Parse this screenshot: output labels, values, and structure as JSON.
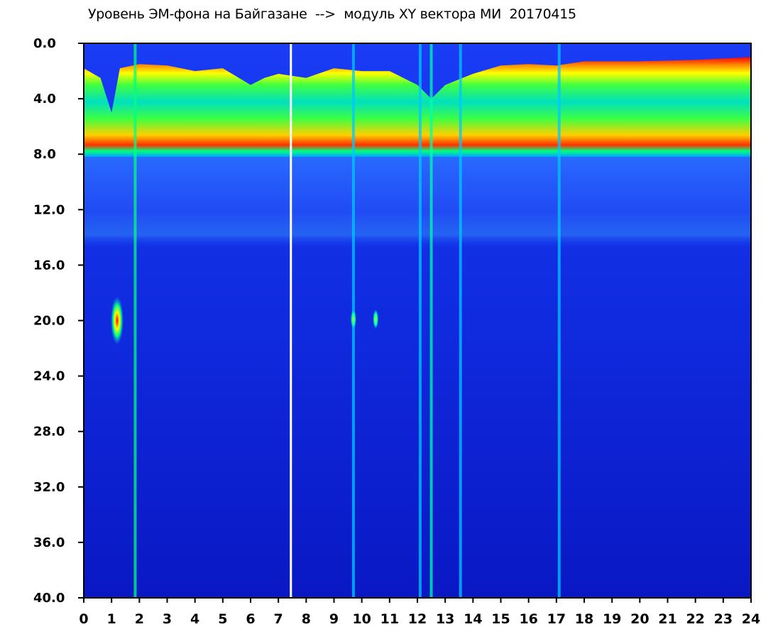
{
  "title": "Уровень ЭМ-фона на Байгазане  -->  модуль XY вектора МИ  20170415",
  "chart_data": {
    "type": "heatmap",
    "title": "Уровень ЭМ-фона на Байгазане  -->  модуль XY вектора МИ  20170415",
    "xlabel": "",
    "ylabel": "",
    "xlim": [
      0,
      24
    ],
    "ylim": [
      40.0,
      0.0
    ],
    "y_inverted": true,
    "x_tick_labels": [
      "0",
      "1",
      "2",
      "3",
      "4",
      "5",
      "6",
      "7",
      "8",
      "9",
      "10",
      "11",
      "12",
      "13",
      "14",
      "15",
      "16",
      "17",
      "18",
      "19",
      "20",
      "21",
      "22",
      "23",
      "24"
    ],
    "y_tick_labels": [
      "0.0",
      "4.0",
      "8.0",
      "12.0",
      "16.0",
      "20.0",
      "24.0",
      "28.0",
      "32.0",
      "36.0",
      "40.0"
    ],
    "colormap": [
      "#0a14c8",
      "#1e46ff",
      "#00c8ff",
      "#00ffaa",
      "#78ff00",
      "#ffff00",
      "#ff8c00",
      "#ff0000",
      "#ffffff"
    ],
    "grid": false,
    "legend": "none",
    "band_top_by_hour": [
      {
        "x": 0.0,
        "y": 1.8
      },
      {
        "x": 0.6,
        "y": 2.5
      },
      {
        "x": 1.0,
        "y": 5.0
      },
      {
        "x": 1.3,
        "y": 1.8
      },
      {
        "x": 2.0,
        "y": 1.5
      },
      {
        "x": 3.0,
        "y": 1.6
      },
      {
        "x": 4.0,
        "y": 2.0
      },
      {
        "x": 5.0,
        "y": 1.8
      },
      {
        "x": 6.0,
        "y": 3.0
      },
      {
        "x": 6.5,
        "y": 2.5
      },
      {
        "x": 7.0,
        "y": 2.2
      },
      {
        "x": 8.0,
        "y": 2.5
      },
      {
        "x": 9.0,
        "y": 1.8
      },
      {
        "x": 10.0,
        "y": 2.0
      },
      {
        "x": 11.0,
        "y": 2.0
      },
      {
        "x": 12.0,
        "y": 3.0
      },
      {
        "x": 12.5,
        "y": 4.0
      },
      {
        "x": 13.0,
        "y": 3.0
      },
      {
        "x": 14.0,
        "y": 2.2
      },
      {
        "x": 15.0,
        "y": 1.6
      },
      {
        "x": 16.0,
        "y": 1.5
      },
      {
        "x": 17.0,
        "y": 1.6
      },
      {
        "x": 18.0,
        "y": 1.3
      },
      {
        "x": 20.0,
        "y": 1.3
      },
      {
        "x": 22.0,
        "y": 1.2
      },
      {
        "x": 24.0,
        "y": 1.0
      }
    ],
    "band_bottom": 8.2,
    "weak_band_bottom": 14.8,
    "vertical_streaks": [
      {
        "x": 1.85,
        "color": "#00ff80"
      },
      {
        "x": 7.45,
        "color": "#ffffff"
      },
      {
        "x": 9.7,
        "color": "#00c8ff"
      },
      {
        "x": 12.1,
        "color": "#00c8ff"
      },
      {
        "x": 12.5,
        "color": "#00ffaa"
      },
      {
        "x": 13.55,
        "color": "#00c8ff"
      },
      {
        "x": 17.1,
        "color": "#00c8ff"
      }
    ],
    "hotspots": [
      {
        "x": 1.2,
        "y": 20.0,
        "intensity": "high"
      },
      {
        "x": 9.7,
        "y": 19.9,
        "intensity": "medium"
      },
      {
        "x": 10.5,
        "y": 19.9,
        "intensity": "medium"
      }
    ]
  }
}
